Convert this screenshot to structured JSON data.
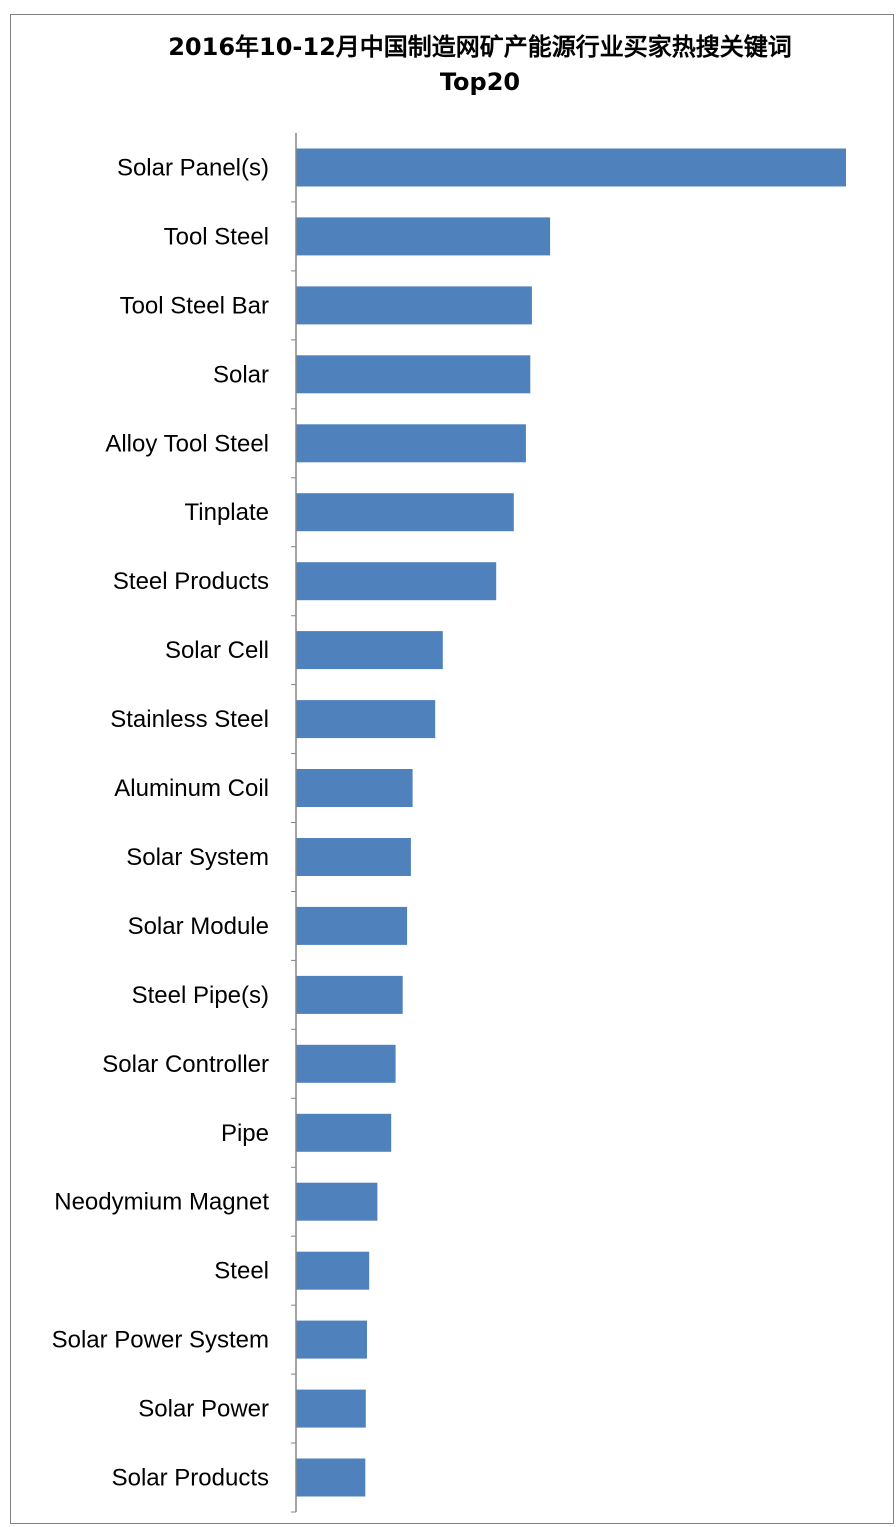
{
  "chart_data": {
    "type": "bar",
    "orientation": "horizontal",
    "title": "2016年10-12月中国制造网矿产能源行业买家热搜关键词",
    "subtitle": "Top20",
    "xlabel": "",
    "ylabel": "",
    "grid": false,
    "legend": "none",
    "xlim": [
      0,
      100
    ],
    "categories": [
      "Solar Panel(s)",
      "Tool Steel",
      "Tool Steel Bar",
      "Solar",
      "Alloy Tool Steel",
      "Tinplate",
      "Steel Products",
      "Solar Cell",
      "Stainless Steel",
      "Aluminum Coil",
      "Solar System",
      "Solar Module",
      "Steel Pipe(s)",
      "Solar Controller",
      "Pipe",
      "Neodymium Magnet",
      "Steel",
      "Solar Power System",
      "Solar Power",
      "Solar Products"
    ],
    "values": [
      100,
      46.2,
      42.9,
      42.6,
      41.8,
      39.6,
      36.4,
      26.7,
      25.3,
      21.2,
      20.9,
      20.2,
      19.4,
      18.1,
      17.3,
      14.8,
      13.3,
      12.9,
      12.7,
      12.6
    ],
    "bar_color": "#4f81bd",
    "axis_color": "#868686"
  }
}
